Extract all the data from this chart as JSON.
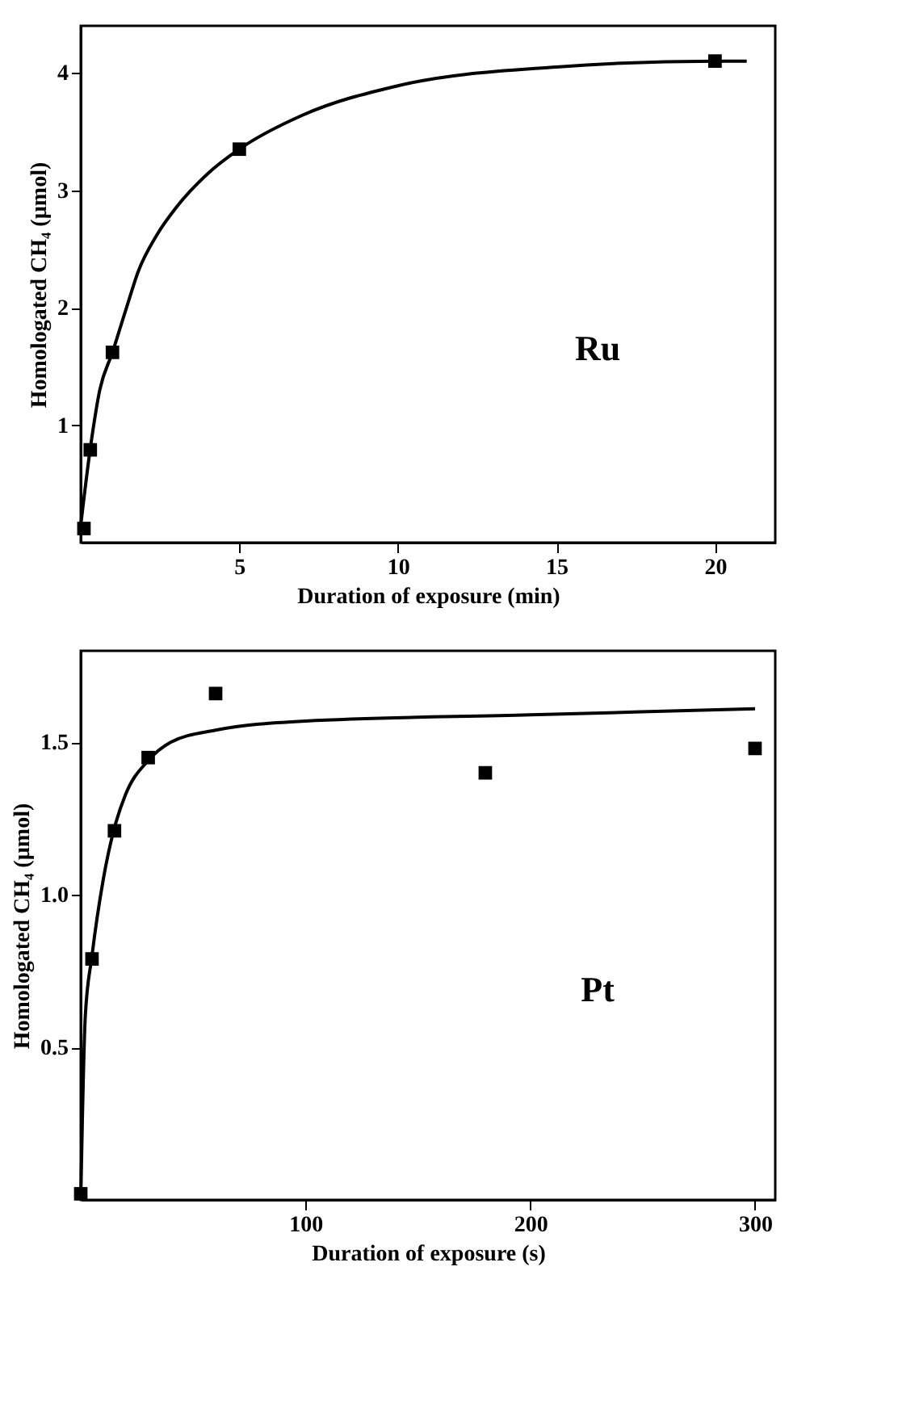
{
  "chart_data": [
    {
      "type": "scatter",
      "xlabel": "Duration of exposure (min)",
      "ylabel": "Homologated CH₄ (µmol)",
      "annotations": [
        "Ru"
      ],
      "xlim": [
        0,
        21.9
      ],
      "ylim": [
        0,
        4.4
      ],
      "xticks": [
        5,
        10,
        15,
        20
      ],
      "yticks": [
        1,
        2,
        3,
        4
      ],
      "grid": false,
      "series": [
        {
          "marker": "square",
          "color": "#000000",
          "x": [
            0.1,
            0.3,
            1,
            5,
            20
          ],
          "values": [
            0.12,
            0.79,
            1.62,
            3.35,
            4.1
          ]
        },
        {
          "type": "line",
          "marker": "none",
          "line_style": "solid",
          "color": "#000000",
          "x": [
            0,
            0.3,
            0.6,
            1,
            1.5,
            1.8,
            2.4,
            3,
            4,
            5,
            7,
            10,
            15,
            20,
            21
          ],
          "values": [
            0.15,
            0.8,
            1.3,
            1.62,
            2.05,
            2.3,
            2.62,
            2.85,
            3.14,
            3.35,
            3.64,
            3.89,
            4.05,
            4.1,
            4.1
          ]
        }
      ]
    },
    {
      "type": "scatter",
      "xlabel": "Duration of exposure (s)",
      "ylabel": "Homologated CH₄ (µmol)",
      "annotations": [
        "Pt"
      ],
      "xlim": [
        0,
        309
      ],
      "ylim": [
        0,
        1.8
      ],
      "xticks": [
        100,
        200,
        300
      ],
      "yticks": [
        0.5,
        {
          "value": 1,
          "label": "1.0"
        },
        1.5
      ],
      "grid": false,
      "series": [
        {
          "marker": "square",
          "color": "#000000",
          "x": [
            0,
            5,
            15,
            30,
            60,
            180,
            300
          ],
          "values": [
            0.02,
            0.79,
            1.21,
            1.45,
            1.66,
            1.4,
            1.48
          ]
        },
        {
          "type": "line",
          "marker": "none",
          "line_style": "solid",
          "color": "#000000",
          "x": [
            0,
            2,
            5,
            10,
            15,
            20,
            30,
            40,
            60,
            100,
            200,
            300
          ],
          "values": [
            0,
            0.6,
            0.8,
            1.05,
            1.22,
            1.33,
            1.44,
            1.5,
            1.54,
            1.57,
            1.59,
            1.61
          ]
        }
      ]
    }
  ]
}
